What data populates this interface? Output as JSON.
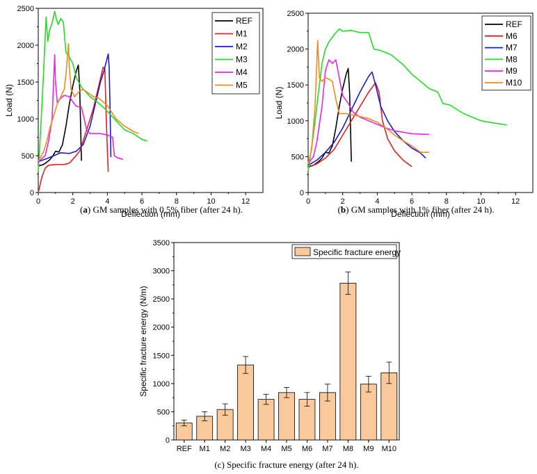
{
  "captions": {
    "a": {
      "tag": "a",
      "text": " GM samples with 0.5% fiber (after 24 h)."
    },
    "b": {
      "tag": "b",
      "text": " GM samples with 1% fiber (after 24 h)."
    },
    "c": {
      "tag": "",
      "text": "(c) Specific fracture energy (after 24 h)."
    }
  },
  "chart_data": [
    {
      "id": "a",
      "type": "line",
      "xlabel": "Deflection (mm)",
      "ylabel": "Load (N)",
      "xlim": [
        0,
        13
      ],
      "ylim": [
        0,
        2500
      ],
      "xticks": [
        0,
        2,
        4,
        6,
        8,
        10,
        12
      ],
      "yticks": [
        0,
        500,
        1000,
        1500,
        2000,
        2500
      ],
      "legend_position": "top-right",
      "series": [
        {
          "name": "REF",
          "color": "#000000",
          "points": [
            [
              0.0,
              360
            ],
            [
              0.3,
              380
            ],
            [
              0.6,
              430
            ],
            [
              0.8,
              480
            ],
            [
              1.0,
              560
            ],
            [
              1.2,
              550
            ],
            [
              1.4,
              650
            ],
            [
              1.6,
              900
            ],
            [
              1.8,
              1200
            ],
            [
              2.0,
              1450
            ],
            [
              2.2,
              1650
            ],
            [
              2.32,
              1730
            ],
            [
              2.4,
              1400
            ],
            [
              2.45,
              900
            ],
            [
              2.5,
              430
            ]
          ]
        },
        {
          "name": "M1",
          "color": "#e02020",
          "points": [
            [
              0.0,
              0
            ],
            [
              0.2,
              200
            ],
            [
              0.3,
              270
            ],
            [
              0.4,
              330
            ],
            [
              0.6,
              370
            ],
            [
              1.0,
              380
            ],
            [
              1.5,
              380
            ],
            [
              1.8,
              400
            ],
            [
              2.0,
              450
            ],
            [
              2.4,
              560
            ],
            [
              2.8,
              850
            ],
            [
              3.2,
              1150
            ],
            [
              3.5,
              1450
            ],
            [
              3.75,
              1700
            ],
            [
              3.85,
              1680
            ],
            [
              3.95,
              900
            ],
            [
              4.05,
              280
            ]
          ]
        },
        {
          "name": "M2",
          "color": "#1a1acc",
          "points": [
            [
              0.0,
              420
            ],
            [
              0.5,
              460
            ],
            [
              1.0,
              510
            ],
            [
              1.3,
              540
            ],
            [
              1.8,
              530
            ],
            [
              2.2,
              560
            ],
            [
              2.6,
              650
            ],
            [
              3.0,
              900
            ],
            [
              3.3,
              1200
            ],
            [
              3.6,
              1500
            ],
            [
              3.8,
              1650
            ],
            [
              4.05,
              1880
            ],
            [
              4.1,
              1700
            ],
            [
              4.15,
              1200
            ],
            [
              4.2,
              480
            ]
          ]
        },
        {
          "name": "M3",
          "color": "#22dd22",
          "points": [
            [
              0.0,
              280
            ],
            [
              0.15,
              900
            ],
            [
              0.3,
              1600
            ],
            [
              0.45,
              2380
            ],
            [
              0.55,
              2050
            ],
            [
              0.65,
              2200
            ],
            [
              0.8,
              2300
            ],
            [
              0.95,
              2460
            ],
            [
              1.05,
              2350
            ],
            [
              1.15,
              2280
            ],
            [
              1.3,
              2360
            ],
            [
              1.45,
              2320
            ],
            [
              1.6,
              1900
            ],
            [
              1.8,
              1840
            ],
            [
              2.0,
              1750
            ],
            [
              2.2,
              1560
            ],
            [
              2.5,
              1430
            ],
            [
              3.0,
              1300
            ],
            [
              3.4,
              1230
            ],
            [
              3.8,
              1150
            ],
            [
              4.2,
              1050
            ],
            [
              4.6,
              950
            ],
            [
              5.0,
              850
            ],
            [
              5.5,
              800
            ],
            [
              6.0,
              720
            ],
            [
              6.3,
              700
            ]
          ]
        },
        {
          "name": "M4",
          "color": "#ee22ee",
          "points": [
            [
              0.0,
              420
            ],
            [
              0.4,
              500
            ],
            [
              0.6,
              700
            ],
            [
              0.8,
              1000
            ],
            [
              0.95,
              1870
            ],
            [
              1.0,
              1500
            ],
            [
              1.1,
              1220
            ],
            [
              1.3,
              1280
            ],
            [
              1.5,
              1320
            ],
            [
              1.8,
              1300
            ],
            [
              2.0,
              1230
            ],
            [
              2.2,
              1170
            ],
            [
              2.5,
              1160
            ],
            [
              2.8,
              850
            ],
            [
              3.0,
              800
            ],
            [
              3.6,
              800
            ],
            [
              4.0,
              780
            ],
            [
              4.3,
              750
            ],
            [
              4.4,
              500
            ],
            [
              4.6,
              470
            ],
            [
              4.9,
              450
            ]
          ]
        },
        {
          "name": "M5",
          "color": "#f08a1e",
          "points": [
            [
              0.0,
              430
            ],
            [
              0.3,
              550
            ],
            [
              0.5,
              700
            ],
            [
              0.7,
              900
            ],
            [
              0.9,
              1050
            ],
            [
              1.1,
              1200
            ],
            [
              1.3,
              1300
            ],
            [
              1.5,
              1400
            ],
            [
              1.6,
              1600
            ],
            [
              1.75,
              2020
            ],
            [
              1.8,
              1700
            ],
            [
              1.9,
              1400
            ],
            [
              2.1,
              1300
            ],
            [
              2.4,
              1380
            ],
            [
              2.6,
              1400
            ],
            [
              2.9,
              1350
            ],
            [
              3.2,
              1300
            ],
            [
              3.5,
              1280
            ],
            [
              4.0,
              1180
            ],
            [
              4.5,
              1000
            ],
            [
              5.0,
              900
            ],
            [
              5.5,
              830
            ],
            [
              5.8,
              800
            ]
          ]
        }
      ]
    },
    {
      "id": "b",
      "type": "line",
      "xlabel": "Deflection (mm)",
      "ylabel": "Load (N)",
      "xlim": [
        0,
        13
      ],
      "ylim": [
        0,
        2500
      ],
      "xticks": [
        0,
        2,
        4,
        6,
        8,
        10,
        12
      ],
      "yticks": [
        0,
        500,
        1000,
        1500,
        2000,
        2500
      ],
      "legend_position": "top-right",
      "series": [
        {
          "name": "REF",
          "color": "#000000",
          "points": [
            [
              0.0,
              360
            ],
            [
              0.3,
              380
            ],
            [
              0.6,
              430
            ],
            [
              0.8,
              480
            ],
            [
              1.0,
              560
            ],
            [
              1.2,
              550
            ],
            [
              1.4,
              650
            ],
            [
              1.6,
              900
            ],
            [
              1.8,
              1200
            ],
            [
              2.0,
              1450
            ],
            [
              2.2,
              1650
            ],
            [
              2.32,
              1730
            ],
            [
              2.4,
              1400
            ],
            [
              2.45,
              900
            ],
            [
              2.5,
              430
            ]
          ]
        },
        {
          "name": "M6",
          "color": "#e02020",
          "points": [
            [
              0.0,
              350
            ],
            [
              0.5,
              400
            ],
            [
              1.0,
              480
            ],
            [
              1.5,
              600
            ],
            [
              2.0,
              800
            ],
            [
              2.5,
              1000
            ],
            [
              3.0,
              1200
            ],
            [
              3.5,
              1400
            ],
            [
              3.9,
              1530
            ],
            [
              4.1,
              1400
            ],
            [
              4.3,
              1000
            ],
            [
              4.6,
              750
            ],
            [
              5.0,
              580
            ],
            [
              5.5,
              450
            ],
            [
              6.0,
              360
            ]
          ]
        },
        {
          "name": "M7",
          "color": "#1a1acc",
          "points": [
            [
              0.0,
              380
            ],
            [
              0.5,
              450
            ],
            [
              1.0,
              560
            ],
            [
              1.5,
              700
            ],
            [
              2.0,
              900
            ],
            [
              2.5,
              1150
            ],
            [
              3.0,
              1400
            ],
            [
              3.5,
              1620
            ],
            [
              3.7,
              1680
            ],
            [
              3.9,
              1500
            ],
            [
              4.2,
              1200
            ],
            [
              4.6,
              1000
            ],
            [
              5.0,
              850
            ],
            [
              5.5,
              720
            ],
            [
              6.0,
              620
            ],
            [
              6.5,
              550
            ],
            [
              6.8,
              480
            ]
          ]
        },
        {
          "name": "M8",
          "color": "#22dd22",
          "points": [
            [
              0.0,
              300
            ],
            [
              0.3,
              800
            ],
            [
              0.5,
              1200
            ],
            [
              0.8,
              1800
            ],
            [
              1.0,
              2000
            ],
            [
              1.2,
              2100
            ],
            [
              1.5,
              2200
            ],
            [
              1.8,
              2280
            ],
            [
              2.0,
              2250
            ],
            [
              2.5,
              2260
            ],
            [
              3.0,
              2230
            ],
            [
              3.5,
              2230
            ],
            [
              3.8,
              2000
            ],
            [
              4.2,
              1980
            ],
            [
              4.8,
              1920
            ],
            [
              5.5,
              1780
            ],
            [
              6.0,
              1650
            ],
            [
              6.5,
              1550
            ],
            [
              7.0,
              1450
            ],
            [
              7.5,
              1400
            ],
            [
              7.8,
              1240
            ],
            [
              8.2,
              1220
            ],
            [
              9.0,
              1100
            ],
            [
              9.5,
              1050
            ],
            [
              10.0,
              1000
            ],
            [
              10.5,
              980
            ],
            [
              11.0,
              960
            ],
            [
              11.5,
              940
            ]
          ]
        },
        {
          "name": "M9",
          "color": "#ee22ee",
          "points": [
            [
              0.0,
              400
            ],
            [
              0.3,
              500
            ],
            [
              0.5,
              700
            ],
            [
              0.8,
              1200
            ],
            [
              1.0,
              1700
            ],
            [
              1.2,
              1850
            ],
            [
              1.4,
              1800
            ],
            [
              1.6,
              1850
            ],
            [
              1.8,
              1600
            ],
            [
              2.0,
              1350
            ],
            [
              2.3,
              1250
            ],
            [
              2.6,
              1120
            ],
            [
              3.0,
              1050
            ],
            [
              3.5,
              1000
            ],
            [
              4.0,
              950
            ],
            [
              4.5,
              900
            ],
            [
              5.0,
              860
            ],
            [
              5.5,
              840
            ],
            [
              6.0,
              820
            ],
            [
              6.5,
              815
            ],
            [
              7.0,
              810
            ]
          ]
        },
        {
          "name": "M10",
          "color": "#f08a1e",
          "points": [
            [
              0.0,
              400
            ],
            [
              0.2,
              600
            ],
            [
              0.4,
              1200
            ],
            [
              0.55,
              2120
            ],
            [
              0.65,
              1600
            ],
            [
              0.8,
              1550
            ],
            [
              1.0,
              1600
            ],
            [
              1.2,
              1580
            ],
            [
              1.4,
              1550
            ],
            [
              1.6,
              1300
            ],
            [
              1.8,
              1100
            ],
            [
              2.2,
              1100
            ],
            [
              2.6,
              1080
            ],
            [
              3.0,
              1060
            ],
            [
              3.5,
              1030
            ],
            [
              4.0,
              980
            ],
            [
              4.5,
              900
            ],
            [
              5.0,
              800
            ],
            [
              5.5,
              720
            ],
            [
              6.0,
              650
            ],
            [
              6.5,
              560
            ],
            [
              7.0,
              560
            ]
          ]
        }
      ]
    },
    {
      "id": "c",
      "type": "bar",
      "ylabel": "Specific fracture energy (N/m)",
      "legend": "Specific fracture energy",
      "legend_position": "top-right",
      "bar_color": "#f8c99a",
      "ylim": [
        0,
        3500
      ],
      "yticks": [
        0,
        500,
        1000,
        1500,
        2000,
        2500,
        3000,
        3500
      ],
      "categories": [
        "REF",
        "M1",
        "M2",
        "M3",
        "M4",
        "M5",
        "M6",
        "M7",
        "M8",
        "M9",
        "M10"
      ],
      "values": [
        300,
        420,
        540,
        1330,
        720,
        840,
        720,
        840,
        2780,
        990,
        1190
      ],
      "errors": [
        50,
        80,
        100,
        150,
        90,
        90,
        120,
        150,
        200,
        140,
        190
      ]
    }
  ]
}
